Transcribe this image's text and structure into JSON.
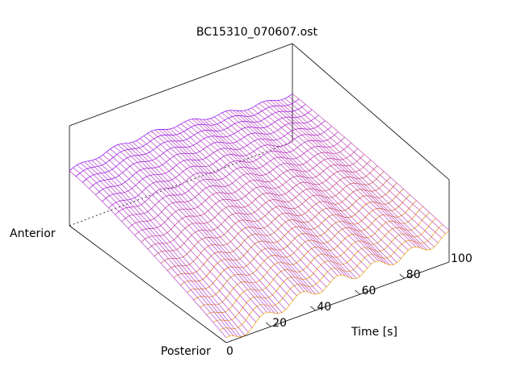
{
  "chart_data": {
    "type": "surface",
    "title": "BC15310_070607.ost",
    "xlabel": "Time [s]",
    "xlim": [
      0,
      100
    ],
    "x_ticks": [
      "0",
      "20",
      "40",
      "60",
      "80",
      "100"
    ],
    "y_axis_labels": {
      "front": "Posterior",
      "back": "Anterior"
    },
    "grid": false,
    "colormap": [
      "#7f00ff",
      "#b72fb4",
      "#d86a1c",
      "#f0b400"
    ],
    "surface": {
      "time_samples": 60,
      "depth_samples": 24,
      "model": "value falls toward posterior side early in time and flattens later; periodic ripple along time",
      "notes": "wireframe mesh colored from purple (high) to orange/yellow (low)"
    }
  }
}
